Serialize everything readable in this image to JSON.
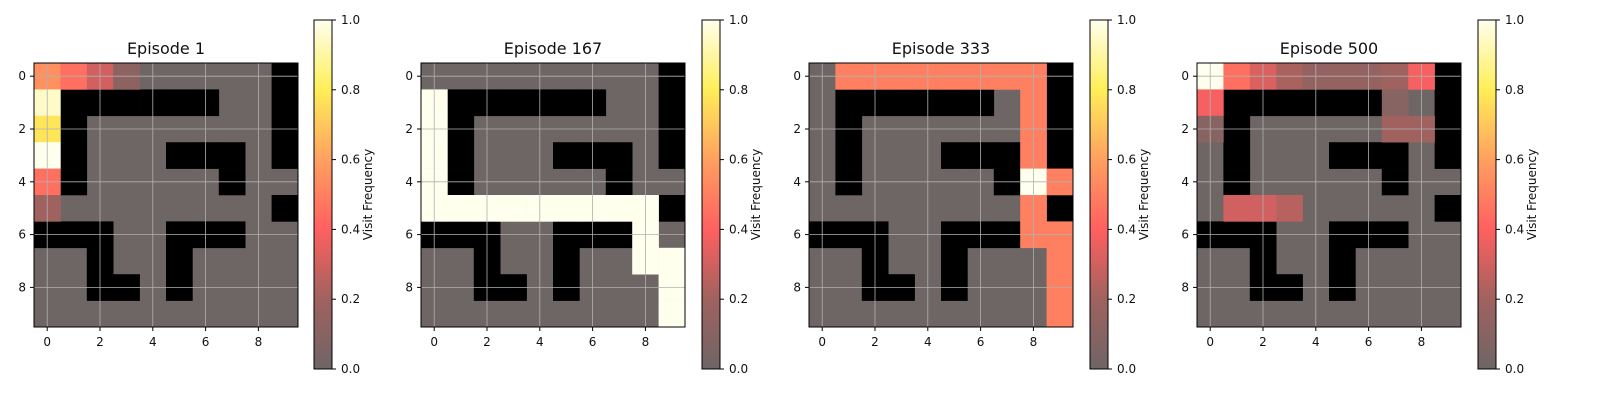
{
  "figure": {
    "panels_title_prefix": "Episode",
    "colorbar_label": "Visit Frequency"
  },
  "chart_data": [
    {
      "type": "heatmap",
      "title": "Episode 1",
      "xlabel": "",
      "ylabel": "",
      "x_ticks": [
        0,
        2,
        4,
        6,
        8
      ],
      "y_ticks": [
        0,
        2,
        4,
        6,
        8
      ],
      "colorbar": {
        "label": "Visit Frequency",
        "range": [
          0.0,
          1.0
        ],
        "ticks": [
          "0.0",
          "0.2",
          "0.4",
          "0.6",
          "0.8",
          "1.0"
        ]
      },
      "walls": [
        [
          0,
          0,
          0,
          0,
          0,
          0,
          0,
          0,
          0,
          1
        ],
        [
          0,
          1,
          1,
          1,
          1,
          1,
          1,
          0,
          0,
          1
        ],
        [
          0,
          1,
          0,
          0,
          0,
          0,
          0,
          0,
          0,
          1
        ],
        [
          0,
          1,
          0,
          0,
          0,
          1,
          1,
          1,
          0,
          1
        ],
        [
          0,
          1,
          0,
          0,
          0,
          0,
          0,
          1,
          0,
          0
        ],
        [
          0,
          0,
          0,
          0,
          0,
          0,
          0,
          0,
          0,
          1
        ],
        [
          1,
          1,
          1,
          0,
          0,
          1,
          1,
          1,
          0,
          0
        ],
        [
          0,
          0,
          1,
          0,
          0,
          1,
          0,
          0,
          0,
          0
        ],
        [
          0,
          0,
          1,
          1,
          0,
          1,
          0,
          0,
          0,
          0
        ],
        [
          0,
          0,
          0,
          0,
          0,
          0,
          0,
          0,
          0,
          0
        ]
      ],
      "visits": [
        [
          0,
          0,
          0.55
        ],
        [
          0,
          1,
          0.45
        ],
        [
          0,
          2,
          0.3
        ],
        [
          0,
          3,
          0.12
        ],
        [
          1,
          0,
          0.95
        ],
        [
          2,
          0,
          0.78
        ],
        [
          3,
          0,
          1.0
        ],
        [
          4,
          0,
          0.45
        ],
        [
          5,
          0,
          0.2
        ]
      ]
    },
    {
      "type": "heatmap",
      "title": "Episode 167",
      "xlabel": "",
      "ylabel": "",
      "x_ticks": [
        0,
        2,
        4,
        6,
        8
      ],
      "y_ticks": [
        0,
        2,
        4,
        6,
        8
      ],
      "colorbar": {
        "label": "Visit Frequency",
        "range": [
          0.0,
          1.0
        ],
        "ticks": [
          "0.0",
          "0.2",
          "0.4",
          "0.6",
          "0.8",
          "1.0"
        ]
      },
      "walls": [
        [
          0,
          0,
          0,
          0,
          0,
          0,
          0,
          0,
          0,
          1
        ],
        [
          0,
          1,
          1,
          1,
          1,
          1,
          1,
          0,
          0,
          1
        ],
        [
          0,
          1,
          0,
          0,
          0,
          0,
          0,
          0,
          0,
          1
        ],
        [
          0,
          1,
          0,
          0,
          0,
          1,
          1,
          1,
          0,
          1
        ],
        [
          0,
          1,
          0,
          0,
          0,
          0,
          0,
          1,
          0,
          0
        ],
        [
          0,
          0,
          0,
          0,
          0,
          0,
          0,
          0,
          0,
          1
        ],
        [
          1,
          1,
          1,
          0,
          0,
          1,
          1,
          1,
          0,
          0
        ],
        [
          0,
          0,
          1,
          0,
          0,
          1,
          0,
          0,
          0,
          0
        ],
        [
          0,
          0,
          1,
          1,
          0,
          1,
          0,
          0,
          0,
          0
        ],
        [
          0,
          0,
          0,
          0,
          0,
          0,
          0,
          0,
          0,
          0
        ]
      ],
      "visits": [
        [
          1,
          0,
          1.0
        ],
        [
          2,
          0,
          1.0
        ],
        [
          3,
          0,
          1.0
        ],
        [
          4,
          0,
          1.0
        ],
        [
          5,
          0,
          1.0
        ],
        [
          5,
          1,
          1.0
        ],
        [
          5,
          2,
          1.0
        ],
        [
          5,
          3,
          1.0
        ],
        [
          5,
          4,
          1.0
        ],
        [
          5,
          5,
          1.0
        ],
        [
          5,
          6,
          1.0
        ],
        [
          5,
          7,
          1.0
        ],
        [
          5,
          8,
          1.0
        ],
        [
          6,
          8,
          1.0
        ],
        [
          7,
          8,
          1.0
        ],
        [
          7,
          9,
          1.0
        ],
        [
          8,
          9,
          1.0
        ],
        [
          9,
          9,
          1.0
        ]
      ]
    },
    {
      "type": "heatmap",
      "title": "Episode 333",
      "xlabel": "",
      "ylabel": "",
      "x_ticks": [
        0,
        2,
        4,
        6,
        8
      ],
      "y_ticks": [
        0,
        2,
        4,
        6,
        8
      ],
      "colorbar": {
        "label": "Visit Frequency",
        "range": [
          0.0,
          1.0
        ],
        "ticks": [
          "0.0",
          "0.2",
          "0.4",
          "0.6",
          "0.8",
          "1.0"
        ]
      },
      "walls": [
        [
          0,
          0,
          0,
          0,
          0,
          0,
          0,
          0,
          0,
          1
        ],
        [
          0,
          1,
          1,
          1,
          1,
          1,
          1,
          0,
          0,
          1
        ],
        [
          0,
          1,
          0,
          0,
          0,
          0,
          0,
          0,
          0,
          1
        ],
        [
          0,
          1,
          0,
          0,
          0,
          1,
          1,
          1,
          0,
          1
        ],
        [
          0,
          1,
          0,
          0,
          0,
          0,
          0,
          1,
          0,
          0
        ],
        [
          0,
          0,
          0,
          0,
          0,
          0,
          0,
          0,
          0,
          1
        ],
        [
          1,
          1,
          1,
          0,
          0,
          1,
          1,
          1,
          0,
          0
        ],
        [
          0,
          0,
          1,
          0,
          0,
          1,
          0,
          0,
          0,
          0
        ],
        [
          0,
          0,
          1,
          1,
          0,
          1,
          0,
          0,
          0,
          0
        ],
        [
          0,
          0,
          0,
          0,
          0,
          0,
          0,
          0,
          0,
          0
        ]
      ],
      "visits": [
        [
          0,
          1,
          0.5
        ],
        [
          0,
          2,
          0.5
        ],
        [
          0,
          3,
          0.5
        ],
        [
          0,
          4,
          0.5
        ],
        [
          0,
          5,
          0.5
        ],
        [
          0,
          6,
          0.5
        ],
        [
          0,
          7,
          0.5
        ],
        [
          0,
          8,
          0.5
        ],
        [
          1,
          8,
          0.5
        ],
        [
          2,
          8,
          0.5
        ],
        [
          3,
          8,
          0.5
        ],
        [
          4,
          8,
          1.0
        ],
        [
          4,
          9,
          0.5
        ],
        [
          5,
          8,
          0.5
        ],
        [
          6,
          8,
          0.5
        ],
        [
          6,
          9,
          0.5
        ],
        [
          7,
          9,
          0.5
        ],
        [
          8,
          9,
          0.5
        ],
        [
          9,
          9,
          0.5
        ]
      ]
    },
    {
      "type": "heatmap",
      "title": "Episode 500",
      "xlabel": "",
      "ylabel": "",
      "x_ticks": [
        0,
        2,
        4,
        6,
        8
      ],
      "y_ticks": [
        0,
        2,
        4,
        6,
        8
      ],
      "colorbar": {
        "label": "Visit Frequency",
        "range": [
          0.0,
          1.0
        ],
        "ticks": [
          "0.0",
          "0.2",
          "0.4",
          "0.6",
          "0.8",
          "1.0"
        ]
      },
      "walls": [
        [
          0,
          0,
          0,
          0,
          0,
          0,
          0,
          0,
          0,
          1
        ],
        [
          0,
          1,
          1,
          1,
          1,
          1,
          1,
          0,
          0,
          1
        ],
        [
          0,
          1,
          0,
          0,
          0,
          0,
          0,
          0,
          0,
          1
        ],
        [
          0,
          1,
          0,
          0,
          0,
          1,
          1,
          1,
          0,
          1
        ],
        [
          0,
          1,
          0,
          0,
          0,
          0,
          0,
          1,
          0,
          0
        ],
        [
          0,
          0,
          0,
          0,
          0,
          0,
          0,
          0,
          0,
          1
        ],
        [
          1,
          1,
          1,
          0,
          0,
          1,
          1,
          1,
          0,
          0
        ],
        [
          0,
          0,
          1,
          0,
          0,
          1,
          0,
          0,
          0,
          0
        ],
        [
          0,
          0,
          1,
          1,
          0,
          1,
          0,
          0,
          0,
          0
        ],
        [
          0,
          0,
          0,
          0,
          0,
          0,
          0,
          0,
          0,
          0
        ]
      ],
      "visits": [
        [
          0,
          0,
          1.0
        ],
        [
          0,
          1,
          0.45
        ],
        [
          0,
          2,
          0.32
        ],
        [
          0,
          3,
          0.22
        ],
        [
          0,
          4,
          0.15
        ],
        [
          0,
          5,
          0.15
        ],
        [
          0,
          6,
          0.15
        ],
        [
          0,
          7,
          0.2
        ],
        [
          0,
          8,
          0.38
        ],
        [
          1,
          0,
          0.38
        ],
        [
          1,
          7,
          0.1
        ],
        [
          2,
          0,
          0.1
        ],
        [
          2,
          7,
          0.2
        ],
        [
          2,
          8,
          0.2
        ],
        [
          5,
          1,
          0.3
        ],
        [
          5,
          2,
          0.3
        ],
        [
          5,
          3,
          0.25
        ]
      ]
    }
  ]
}
